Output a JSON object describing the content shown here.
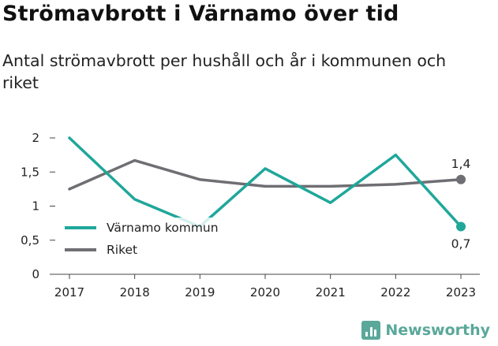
{
  "header": {
    "title": "Strömavbrott i Värnamo över tid",
    "subtitle": "Antal strömavbrott per hushåll och år i kommunen och riket"
  },
  "chart_data": {
    "type": "line",
    "x": [
      "2017",
      "2018",
      "2019",
      "2020",
      "2021",
      "2022",
      "2023"
    ],
    "yticks": [
      "0",
      "0,5",
      "1",
      "1,5",
      "2"
    ],
    "ylim": [
      0,
      2
    ],
    "grid": false,
    "legend_position": "bottom-left",
    "series": [
      {
        "name": "Värnamo kommun",
        "color": "#1fa79a",
        "values": [
          2.0,
          1.1,
          0.7,
          1.55,
          1.05,
          1.75,
          0.7
        ],
        "end_label": "0,7"
      },
      {
        "name": "Riket",
        "color": "#6f6e73",
        "values": [
          1.25,
          1.67,
          1.39,
          1.29,
          1.29,
          1.32,
          1.39
        ],
        "end_label": "1,4"
      }
    ]
  },
  "brand": {
    "name": "Newsworthy",
    "icon": "bar-chart-icon",
    "color": "#5aa89a"
  }
}
